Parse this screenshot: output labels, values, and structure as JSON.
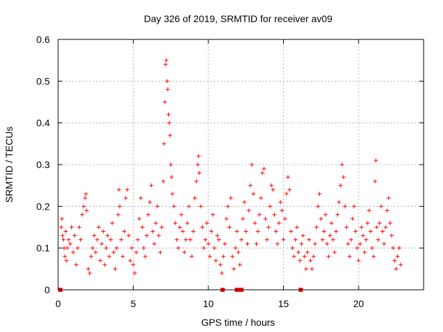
{
  "chart_data": {
    "type": "scatter",
    "title": "Day 326 of 2019, SRMTID for receiver av09",
    "xlabel": "GPS time / hours",
    "ylabel": "SRMTID / TECUs",
    "xlim": [
      0,
      24.33
    ],
    "ylim": [
      0,
      0.6
    ],
    "xticks": [
      "0",
      "5",
      "10",
      "15",
      "20"
    ],
    "yticks": [
      "0",
      "0.1",
      "0.2",
      "0.3",
      "0.4",
      "0.5",
      "0.6"
    ],
    "grid": true,
    "marker": "plus",
    "color": "#ff0000",
    "series": [
      {
        "name": "SRMTID",
        "points": [
          [
            0.2,
            0.15
          ],
          [
            0.25,
            0.17
          ],
          [
            0.3,
            0.13
          ],
          [
            0.35,
            0.12
          ],
          [
            0.4,
            0.1
          ],
          [
            0.45,
            0.08
          ],
          [
            0.5,
            0.14
          ],
          [
            0.55,
            0.07
          ],
          [
            0.6,
            0.1
          ],
          [
            0.7,
            0.12
          ],
          [
            0.8,
            0.11
          ],
          [
            0.9,
            0.15
          ],
          [
            1.0,
            0.09
          ],
          [
            1.1,
            0.13
          ],
          [
            1.2,
            0.06
          ],
          [
            1.3,
            0.1
          ],
          [
            1.4,
            0.15
          ],
          [
            1.5,
            0.12
          ],
          [
            1.6,
            0.18
          ],
          [
            1.7,
            0.2
          ],
          [
            1.8,
            0.22
          ],
          [
            1.85,
            0.23
          ],
          [
            1.9,
            0.19
          ],
          [
            2.0,
            0.05
          ],
          [
            2.1,
            0.04
          ],
          [
            2.2,
            0.08
          ],
          [
            2.3,
            0.1
          ],
          [
            2.4,
            0.13
          ],
          [
            2.5,
            0.09
          ],
          [
            2.6,
            0.12
          ],
          [
            2.7,
            0.15
          ],
          [
            2.8,
            0.07
          ],
          [
            2.9,
            0.11
          ],
          [
            3.0,
            0.14
          ],
          [
            3.1,
            0.06
          ],
          [
            3.2,
            0.1
          ],
          [
            3.3,
            0.13
          ],
          [
            3.4,
            0.08
          ],
          [
            3.5,
            0.12
          ],
          [
            3.6,
            0.16
          ],
          [
            3.7,
            0.09
          ],
          [
            3.8,
            0.05
          ],
          [
            3.9,
            0.1
          ],
          [
            4.0,
            0.18
          ],
          [
            4.05,
            0.24
          ],
          [
            4.1,
            0.2
          ],
          [
            4.2,
            0.12
          ],
          [
            4.3,
            0.08
          ],
          [
            4.4,
            0.14
          ],
          [
            4.5,
            0.22
          ],
          [
            4.6,
            0.24
          ],
          [
            4.7,
            0.13
          ],
          [
            4.8,
            0.07
          ],
          [
            4.9,
            0.1
          ],
          [
            5.0,
            0.06
          ],
          [
            5.1,
            0.04
          ],
          [
            5.2,
            0.09
          ],
          [
            5.3,
            0.12
          ],
          [
            5.4,
            0.17
          ],
          [
            5.5,
            0.22
          ],
          [
            5.6,
            0.15
          ],
          [
            5.7,
            0.1
          ],
          [
            5.8,
            0.08
          ],
          [
            5.9,
            0.13
          ],
          [
            6.0,
            0.18
          ],
          [
            6.1,
            0.21
          ],
          [
            6.2,
            0.25
          ],
          [
            6.3,
            0.14
          ],
          [
            6.4,
            0.11
          ],
          [
            6.5,
            0.16
          ],
          [
            6.6,
            0.2
          ],
          [
            6.7,
            0.13
          ],
          [
            6.8,
            0.09
          ],
          [
            6.9,
            0.15
          ],
          [
            7.0,
            0.26
          ],
          [
            7.05,
            0.35
          ],
          [
            7.1,
            0.45
          ],
          [
            7.15,
            0.54
          ],
          [
            7.2,
            0.55
          ],
          [
            7.25,
            0.5
          ],
          [
            7.3,
            0.48
          ],
          [
            7.35,
            0.42
          ],
          [
            7.4,
            0.4
          ],
          [
            7.45,
            0.37
          ],
          [
            7.5,
            0.3
          ],
          [
            7.55,
            0.27
          ],
          [
            7.6,
            0.23
          ],
          [
            7.7,
            0.2
          ],
          [
            7.8,
            0.16
          ],
          [
            7.9,
            0.12
          ],
          [
            8.0,
            0.1
          ],
          [
            8.1,
            0.15
          ],
          [
            8.2,
            0.18
          ],
          [
            8.3,
            0.14
          ],
          [
            8.4,
            0.09
          ],
          [
            8.5,
            0.12
          ],
          [
            8.6,
            0.16
          ],
          [
            8.7,
            0.2
          ],
          [
            8.8,
            0.12
          ],
          [
            8.9,
            0.08
          ],
          [
            9.0,
            0.14
          ],
          [
            9.1,
            0.22
          ],
          [
            9.2,
            0.26
          ],
          [
            9.3,
            0.3
          ],
          [
            9.35,
            0.32
          ],
          [
            9.4,
            0.28
          ],
          [
            9.5,
            0.2
          ],
          [
            9.6,
            0.15
          ],
          [
            9.7,
            0.1
          ],
          [
            9.8,
            0.12
          ],
          [
            9.9,
            0.16
          ],
          [
            10.0,
            0.11
          ],
          [
            10.1,
            0.08
          ],
          [
            10.2,
            0.14
          ],
          [
            10.3,
            0.18
          ],
          [
            10.4,
            0.1
          ],
          [
            10.5,
            0.07
          ],
          [
            10.6,
            0.13
          ],
          [
            10.7,
            0.12
          ],
          [
            10.8,
            0.06
          ],
          [
            10.9,
            0.04
          ],
          [
            11.0,
            0.08
          ],
          [
            11.1,
            0.11
          ],
          [
            11.2,
            0.17
          ],
          [
            11.3,
            0.2
          ],
          [
            11.4,
            0.15
          ],
          [
            11.5,
            0.22
          ],
          [
            11.6,
            0.08
          ],
          [
            11.7,
            0.05
          ],
          [
            11.8,
            0.1
          ],
          [
            11.9,
            0.14
          ],
          [
            12.0,
            0.09
          ],
          [
            12.1,
            0.06
          ],
          [
            12.2,
            0.12
          ],
          [
            12.3,
            0.17
          ],
          [
            12.4,
            0.21
          ],
          [
            12.5,
            0.14
          ],
          [
            12.6,
            0.11
          ],
          [
            12.7,
            0.19
          ],
          [
            12.8,
            0.25
          ],
          [
            12.9,
            0.3
          ],
          [
            13.0,
            0.23
          ],
          [
            13.1,
            0.16
          ],
          [
            13.2,
            0.11
          ],
          [
            13.3,
            0.14
          ],
          [
            13.4,
            0.18
          ],
          [
            13.5,
            0.22
          ],
          [
            13.6,
            0.28
          ],
          [
            13.7,
            0.29
          ],
          [
            13.8,
            0.17
          ],
          [
            13.9,
            0.12
          ],
          [
            14.0,
            0.15
          ],
          [
            14.1,
            0.2
          ],
          [
            14.2,
            0.25
          ],
          [
            14.3,
            0.24
          ],
          [
            14.4,
            0.18
          ],
          [
            14.5,
            0.14
          ],
          [
            14.6,
            0.11
          ],
          [
            14.7,
            0.16
          ],
          [
            14.8,
            0.21
          ],
          [
            14.9,
            0.19
          ],
          [
            15.0,
            0.12
          ],
          [
            15.1,
            0.17
          ],
          [
            15.2,
            0.23
          ],
          [
            15.3,
            0.27
          ],
          [
            15.4,
            0.24
          ],
          [
            15.5,
            0.14
          ],
          [
            15.6,
            0.1
          ],
          [
            15.7,
            0.08
          ],
          [
            15.8,
            0.12
          ],
          [
            15.9,
            0.15
          ],
          [
            16.0,
            0.09
          ],
          [
            16.1,
            0.07
          ],
          [
            16.2,
            0.11
          ],
          [
            16.3,
            0.13
          ],
          [
            16.4,
            0.08
          ],
          [
            16.5,
            0.05
          ],
          [
            16.6,
            0.09
          ],
          [
            16.7,
            0.12
          ],
          [
            16.8,
            0.07
          ],
          [
            16.9,
            0.05
          ],
          [
            17.0,
            0.08
          ],
          [
            17.1,
            0.11
          ],
          [
            17.2,
            0.15
          ],
          [
            17.3,
            0.2
          ],
          [
            17.4,
            0.23
          ],
          [
            17.5,
            0.17
          ],
          [
            17.6,
            0.12
          ],
          [
            17.7,
            0.14
          ],
          [
            17.8,
            0.18
          ],
          [
            17.9,
            0.11
          ],
          [
            18.0,
            0.08
          ],
          [
            18.1,
            0.13
          ],
          [
            18.2,
            0.16
          ],
          [
            18.3,
            0.12
          ],
          [
            18.4,
            0.09
          ],
          [
            18.5,
            0.14
          ],
          [
            18.6,
            0.18
          ],
          [
            18.7,
            0.21
          ],
          [
            18.8,
            0.25
          ],
          [
            18.9,
            0.3
          ],
          [
            19.0,
            0.27
          ],
          [
            19.1,
            0.2
          ],
          [
            19.2,
            0.15
          ],
          [
            19.3,
            0.11
          ],
          [
            19.4,
            0.08
          ],
          [
            19.5,
            0.12
          ],
          [
            19.6,
            0.17
          ],
          [
            19.7,
            0.2
          ],
          [
            19.8,
            0.14
          ],
          [
            19.9,
            0.1
          ],
          [
            20.0,
            0.07
          ],
          [
            20.1,
            0.11
          ],
          [
            20.2,
            0.15
          ],
          [
            20.3,
            0.13
          ],
          [
            20.4,
            0.09
          ],
          [
            20.5,
            0.12
          ],
          [
            20.6,
            0.16
          ],
          [
            20.7,
            0.19
          ],
          [
            20.8,
            0.14
          ],
          [
            20.9,
            0.1
          ],
          [
            21.0,
            0.08
          ],
          [
            21.1,
            0.26
          ],
          [
            21.15,
            0.31
          ],
          [
            21.2,
            0.15
          ],
          [
            21.3,
            0.12
          ],
          [
            21.4,
            0.16
          ],
          [
            21.5,
            0.2
          ],
          [
            21.6,
            0.14
          ],
          [
            21.7,
            0.11
          ],
          [
            21.8,
            0.15
          ],
          [
            21.9,
            0.19
          ],
          [
            22.0,
            0.22
          ],
          [
            22.1,
            0.16
          ],
          [
            22.2,
            0.13
          ],
          [
            22.3,
            0.1
          ],
          [
            22.4,
            0.07
          ],
          [
            22.5,
            0.05
          ],
          [
            22.6,
            0.08
          ],
          [
            22.7,
            0.1
          ],
          [
            22.8,
            0.06
          ]
        ]
      }
    ],
    "zero_markers_hours": [
      0.15,
      10.95,
      11.9,
      12.0,
      12.1,
      12.2,
      16.15
    ]
  }
}
